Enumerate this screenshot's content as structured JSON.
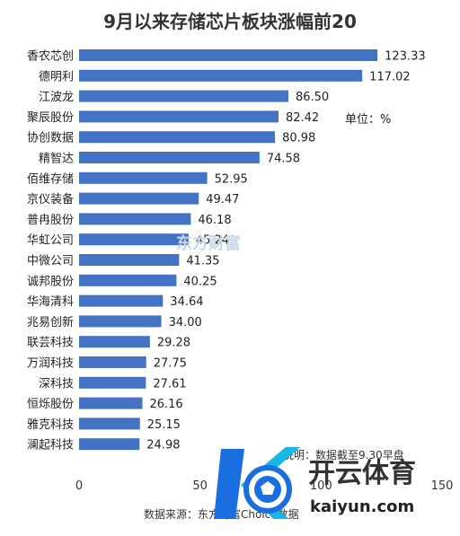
{
  "chart_data": {
    "type": "bar",
    "orientation": "horizontal",
    "title": "9月以来存储芯片板块涨幅前20",
    "unit_label": "单位：%",
    "categories": [
      "香农芯创",
      "德明利",
      "江波龙",
      "聚辰股份",
      "协创数据",
      "精智达",
      "佰维存储",
      "京仪装备",
      "普冉股份",
      "华虹公司",
      "中微公司",
      "诚邦股份",
      "华海清科",
      "兆易创新",
      "联芸科技",
      "万润科技",
      "深科技",
      "恒烁股份",
      "雅克科技",
      "澜起科技"
    ],
    "values": [
      123.33,
      117.02,
      86.5,
      82.42,
      80.98,
      74.58,
      52.95,
      49.47,
      46.18,
      45.24,
      41.35,
      40.25,
      34.64,
      34.0,
      29.28,
      27.75,
      27.61,
      26.16,
      25.15,
      24.98
    ],
    "value_labels": [
      "123.33",
      "117.02",
      "86.50",
      "82.42",
      "80.98",
      "74.58",
      "52.95",
      "49.47",
      "46.18",
      "45.24",
      "41.35",
      "40.25",
      "34.64",
      "34.00",
      "29.28",
      "27.75",
      "27.61",
      "26.16",
      "25.15",
      "24.98"
    ],
    "xlim": [
      0,
      150
    ],
    "x_ticks": [
      "0",
      "50",
      "100",
      "150"
    ],
    "bar_color": "#4472c4",
    "note": "说明：数据截至9.30早盘",
    "source": "数据来源：东方财富Choice数据"
  },
  "watermark": "东方财富",
  "logo": {
    "name": "开云体育",
    "url": "kaiyun.com",
    "blue": "#1a6fe0",
    "cyan": "#19b6e8"
  }
}
